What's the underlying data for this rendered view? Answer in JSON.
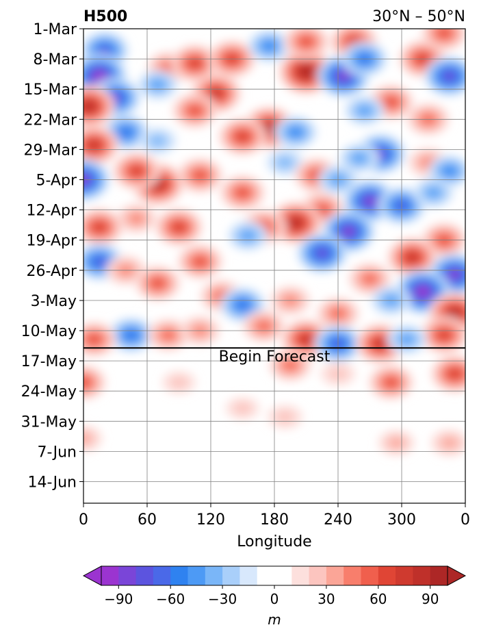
{
  "chart_data": {
    "type": "heatmap",
    "title": "H500",
    "subtitle": "30°N – 50°N",
    "xlabel": "Longitude",
    "x_ticks": [
      "0",
      "60",
      "120",
      "180",
      "240",
      "300",
      "0"
    ],
    "x_range": [
      0,
      360
    ],
    "y_ticks": [
      "1-Mar",
      "8-Mar",
      "15-Mar",
      "22-Mar",
      "29-Mar",
      "5-Apr",
      "12-Apr",
      "19-Apr",
      "26-Apr",
      "3-May",
      "10-May",
      "17-May",
      "24-May",
      "31-May",
      "7-Jun",
      "14-Jun"
    ],
    "y_range": [
      "1-Mar",
      "19-Jun"
    ],
    "grid": true,
    "annotation": {
      "text": "Begin Forecast",
      "date": "14-May"
    },
    "colorbar": {
      "orientation": "horizontal",
      "extend": "both",
      "label": "m",
      "ticks": [
        "−90",
        "−60",
        "−30",
        "0",
        "30",
        "60",
        "90"
      ],
      "tick_values": [
        -90,
        -60,
        -30,
        0,
        30,
        60,
        90
      ],
      "range": [
        -100,
        100
      ],
      "colors": [
        "#9b34d0",
        "#7a45d8",
        "#5c54df",
        "#4a69e8",
        "#2f82f0",
        "#4d9af5",
        "#7ab6f8",
        "#a9cffa",
        "#d8e8fc",
        "#ffffff",
        "#ffffff",
        "#fde0dd",
        "#fcc5bf",
        "#fba597",
        "#f87e6c",
        "#f05f4d",
        "#e04535",
        "#cf3a2f",
        "#bf302a",
        "#ad2726"
      ]
    },
    "anomaly_blobs": [
      {
        "lon": 20,
        "date": "6-Mar",
        "value": -70
      },
      {
        "lon": 15,
        "date": "12-Mar",
        "value": -100
      },
      {
        "lon": 30,
        "date": "17-Mar",
        "value": -80
      },
      {
        "lon": 5,
        "date": "19-Mar",
        "value": 90
      },
      {
        "lon": 80,
        "date": "10-Mar",
        "value": 50
      },
      {
        "lon": 70,
        "date": "14-Mar",
        "value": -40
      },
      {
        "lon": 105,
        "date": "9-Mar",
        "value": 70
      },
      {
        "lon": 140,
        "date": "8-Mar",
        "value": 70
      },
      {
        "lon": 125,
        "date": "16-Mar",
        "value": 80
      },
      {
        "lon": 105,
        "date": "20-Mar",
        "value": 60
      },
      {
        "lon": 175,
        "date": "5-Mar",
        "value": -50
      },
      {
        "lon": 205,
        "date": "5-Mar",
        "value": -30
      },
      {
        "lon": 210,
        "date": "11-Mar",
        "value": 100
      },
      {
        "lon": 210,
        "date": "4-Mar",
        "value": 60
      },
      {
        "lon": 255,
        "date": "4-Mar",
        "value": 70
      },
      {
        "lon": 245,
        "date": "12-Mar",
        "value": -90
      },
      {
        "lon": 265,
        "date": "8-Mar",
        "value": -60
      },
      {
        "lon": 320,
        "date": "8-Mar",
        "value": 70
      },
      {
        "lon": 345,
        "date": "12-Mar",
        "value": -80
      },
      {
        "lon": 340,
        "date": "2-Mar",
        "value": 60
      },
      {
        "lon": 290,
        "date": "18-Mar",
        "value": 60
      },
      {
        "lon": 325,
        "date": "22-Mar",
        "value": 50
      },
      {
        "lon": 265,
        "date": "20-Mar",
        "value": -40
      },
      {
        "lon": 175,
        "date": "24-Mar",
        "value": 90
      },
      {
        "lon": 200,
        "date": "25-Mar",
        "value": -50
      },
      {
        "lon": 150,
        "date": "26-Mar",
        "value": 70
      },
      {
        "lon": 40,
        "date": "25-Mar",
        "value": -60
      },
      {
        "lon": 10,
        "date": "28-Mar",
        "value": 80
      },
      {
        "lon": 70,
        "date": "27-Mar",
        "value": -30
      },
      {
        "lon": 280,
        "date": "30-Mar",
        "value": -80
      },
      {
        "lon": 260,
        "date": "31-Mar",
        "value": -40
      },
      {
        "lon": 325,
        "date": "1-Apr",
        "value": 40
      },
      {
        "lon": 345,
        "date": "3-Apr",
        "value": -50
      },
      {
        "lon": 0,
        "date": "5-Apr",
        "value": -90
      },
      {
        "lon": 70,
        "date": "6-Apr",
        "value": 90
      },
      {
        "lon": 110,
        "date": "4-Apr",
        "value": 60
      },
      {
        "lon": 50,
        "date": "3-Apr",
        "value": 70
      },
      {
        "lon": 150,
        "date": "8-Apr",
        "value": 60
      },
      {
        "lon": 190,
        "date": "1-Apr",
        "value": -30
      },
      {
        "lon": 220,
        "date": "4-Apr",
        "value": 60
      },
      {
        "lon": 240,
        "date": "5-Apr",
        "value": -40
      },
      {
        "lon": 270,
        "date": "10-Apr",
        "value": -90
      },
      {
        "lon": 300,
        "date": "11-Apr",
        "value": -70
      },
      {
        "lon": 330,
        "date": "8-Apr",
        "value": -40
      },
      {
        "lon": 225,
        "date": "12-Apr",
        "value": 60
      },
      {
        "lon": 200,
        "date": "15-Apr",
        "value": 90
      },
      {
        "lon": 170,
        "date": "16-Apr",
        "value": 60
      },
      {
        "lon": 90,
        "date": "16-Apr",
        "value": 70
      },
      {
        "lon": 50,
        "date": "14-Apr",
        "value": 40
      },
      {
        "lon": 15,
        "date": "16-Apr",
        "value": 70
      },
      {
        "lon": 250,
        "date": "17-Apr",
        "value": -90
      },
      {
        "lon": 225,
        "date": "22-Apr",
        "value": -80
      },
      {
        "lon": 155,
        "date": "18-Apr",
        "value": -40
      },
      {
        "lon": 340,
        "date": "19-Apr",
        "value": 60
      },
      {
        "lon": 310,
        "date": "23-Apr",
        "value": 80
      },
      {
        "lon": 350,
        "date": "27-Apr",
        "value": -90
      },
      {
        "lon": 320,
        "date": "1-May",
        "value": -100
      },
      {
        "lon": 270,
        "date": "28-Apr",
        "value": 50
      },
      {
        "lon": 15,
        "date": "24-Apr",
        "value": -70
      },
      {
        "lon": 40,
        "date": "26-Apr",
        "value": 40
      },
      {
        "lon": 110,
        "date": "24-Apr",
        "value": 60
      },
      {
        "lon": 70,
        "date": "29-Apr",
        "value": 60
      },
      {
        "lon": 130,
        "date": "2-May",
        "value": 50
      },
      {
        "lon": 150,
        "date": "4-May",
        "value": -60
      },
      {
        "lon": 195,
        "date": "3-May",
        "value": 40
      },
      {
        "lon": 240,
        "date": "6-May",
        "value": 50
      },
      {
        "lon": 290,
        "date": "3-May",
        "value": -40
      },
      {
        "lon": 350,
        "date": "6-May",
        "value": 90
      },
      {
        "lon": 340,
        "date": "11-May",
        "value": 70
      },
      {
        "lon": 45,
        "date": "11-May",
        "value": -60
      },
      {
        "lon": 10,
        "date": "12-May",
        "value": 60
      },
      {
        "lon": 80,
        "date": "11-May",
        "value": 50
      },
      {
        "lon": 110,
        "date": "10-May",
        "value": 40
      },
      {
        "lon": 170,
        "date": "9-May",
        "value": 50
      },
      {
        "lon": 210,
        "date": "12-May",
        "value": 80
      },
      {
        "lon": 240,
        "date": "13-May",
        "value": -70
      },
      {
        "lon": 280,
        "date": "13-May",
        "value": 80
      },
      {
        "lon": 305,
        "date": "12-May",
        "value": -40
      },
      {
        "lon": 0,
        "date": "22-May",
        "value": 60
      },
      {
        "lon": 0,
        "date": "4-Jun",
        "value": 30
      },
      {
        "lon": 195,
        "date": "18-May",
        "value": 50
      },
      {
        "lon": 190,
        "date": "30-May",
        "value": 20
      },
      {
        "lon": 290,
        "date": "22-May",
        "value": 60
      },
      {
        "lon": 295,
        "date": "5-Jun",
        "value": 25
      },
      {
        "lon": 350,
        "date": "20-May",
        "value": 70
      },
      {
        "lon": 345,
        "date": "5-Jun",
        "value": 30
      },
      {
        "lon": 240,
        "date": "20-May",
        "value": 20
      },
      {
        "lon": 90,
        "date": "22-May",
        "value": 15
      },
      {
        "lon": 150,
        "date": "28-May",
        "value": 15
      }
    ]
  }
}
